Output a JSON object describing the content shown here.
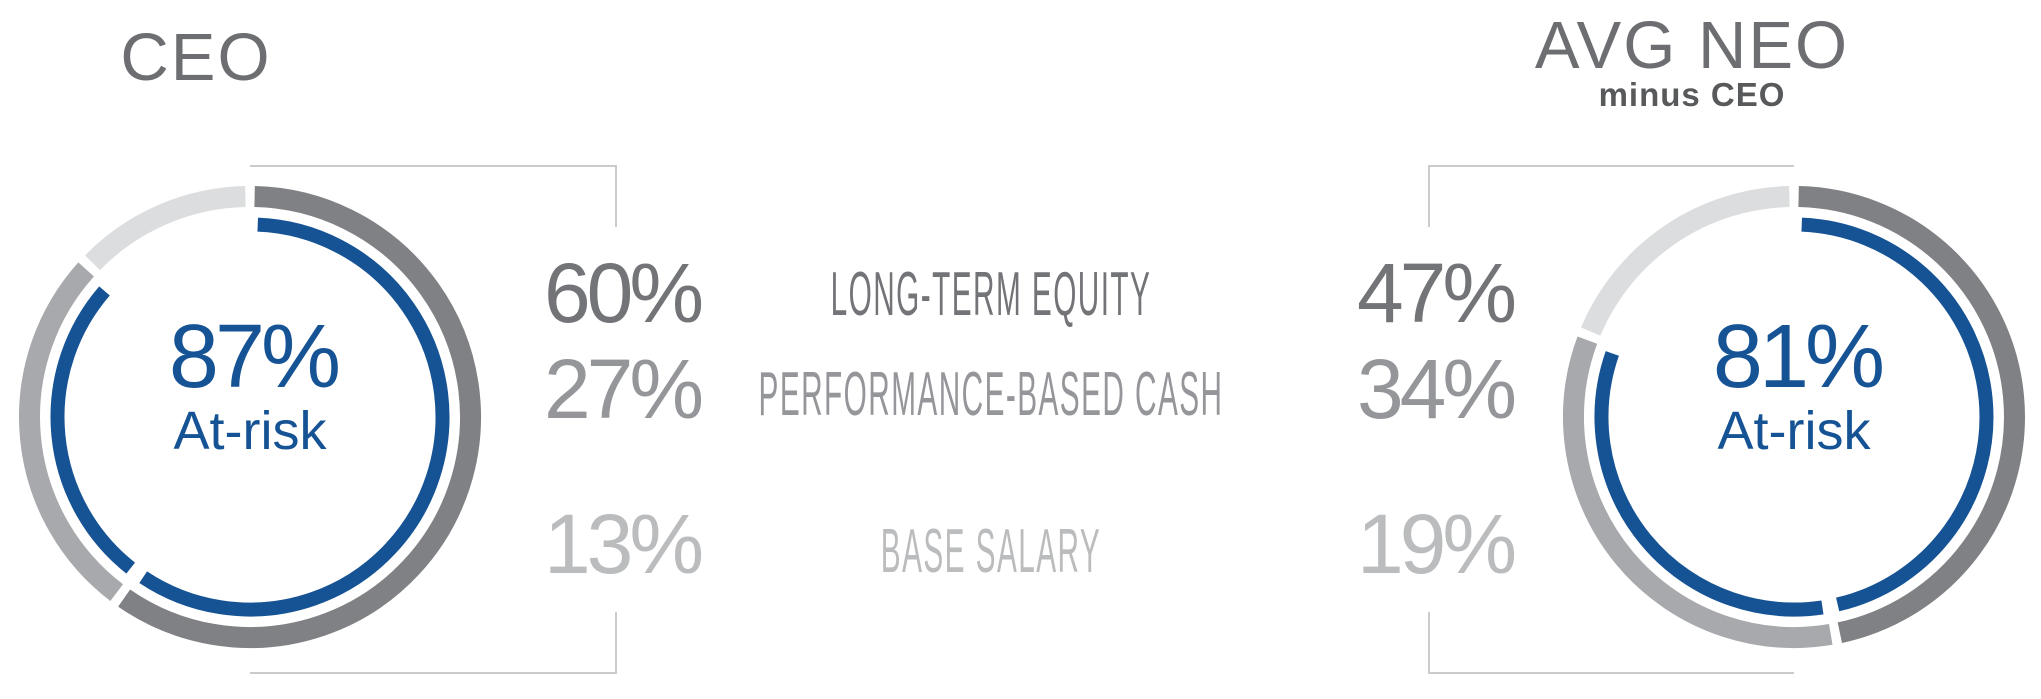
{
  "charts": [
    {
      "id": "ceo",
      "title": "CEO",
      "subtitle": "",
      "center_value": "87%",
      "center_label": "At-risk",
      "at_risk_percent": 87,
      "segments": [
        {
          "label": "LONG-TERM EQUITY",
          "value": 60,
          "display": "60%"
        },
        {
          "label": "PERFORMANCE-BASED CASH",
          "value": 27,
          "display": "27%"
        },
        {
          "label": "BASE SALARY",
          "value": 13,
          "display": "13%"
        }
      ]
    },
    {
      "id": "avg-neo",
      "title": "AVG NEO",
      "subtitle": "minus CEO",
      "center_value": "81%",
      "center_label": "At-risk",
      "at_risk_percent": 81,
      "segments": [
        {
          "label": "LONG-TERM EQUITY",
          "value": 47,
          "display": "47%"
        },
        {
          "label": "PERFORMANCE-BASED CASH",
          "value": 34,
          "display": "34%"
        },
        {
          "label": "BASE SALARY",
          "value": 19,
          "display": "19%"
        }
      ]
    }
  ],
  "category_labels": [
    "LONG-TERM EQUITY",
    "PERFORMANCE-BASED CASH",
    "BASE SALARY"
  ],
  "colors": {
    "at_risk_blue": "#165394",
    "segment_dark_gray": "#7f8184",
    "segment_medium_gray": "#a7a9ac",
    "segment_light_gray": "#dcddde",
    "bracket_line_gray": "#c9cbcd",
    "title_gray": "#6d6e71",
    "subtitle_gray": "#58595b",
    "row1_text": "#737477",
    "row2_text": "#949699",
    "row3_text": "#babcbe"
  },
  "chart_data": {
    "type": "pie",
    "subtype": "double-donut-comparison",
    "title": "CEO vs AVG NEO (minus CEO) pay mix",
    "categories": [
      "Long-Term Equity",
      "Performance-Based Cash",
      "Base Salary"
    ],
    "series": [
      {
        "name": "CEO",
        "values": [
          60,
          27,
          13
        ],
        "at_risk_percent": 87,
        "center_text": "87% At-risk"
      },
      {
        "name": "AVG NEO minus CEO",
        "values": [
          47,
          34,
          19
        ],
        "at_risk_percent": 81,
        "center_text": "81% At-risk"
      }
    ],
    "legend_position": "center-column-shared-labels",
    "value_labels": {
      "CEO": [
        "60%",
        "27%",
        "13%"
      ],
      "AVG NEO minus CEO": [
        "47%",
        "34%",
        "19%"
      ]
    },
    "notes": "Each donut starts at 12 o'clock, clockwise: dark gray = long-term equity, medium gray = performance-based cash, light gray = base salary. Inner blue arc spans the at-risk portion (first two segments)."
  }
}
